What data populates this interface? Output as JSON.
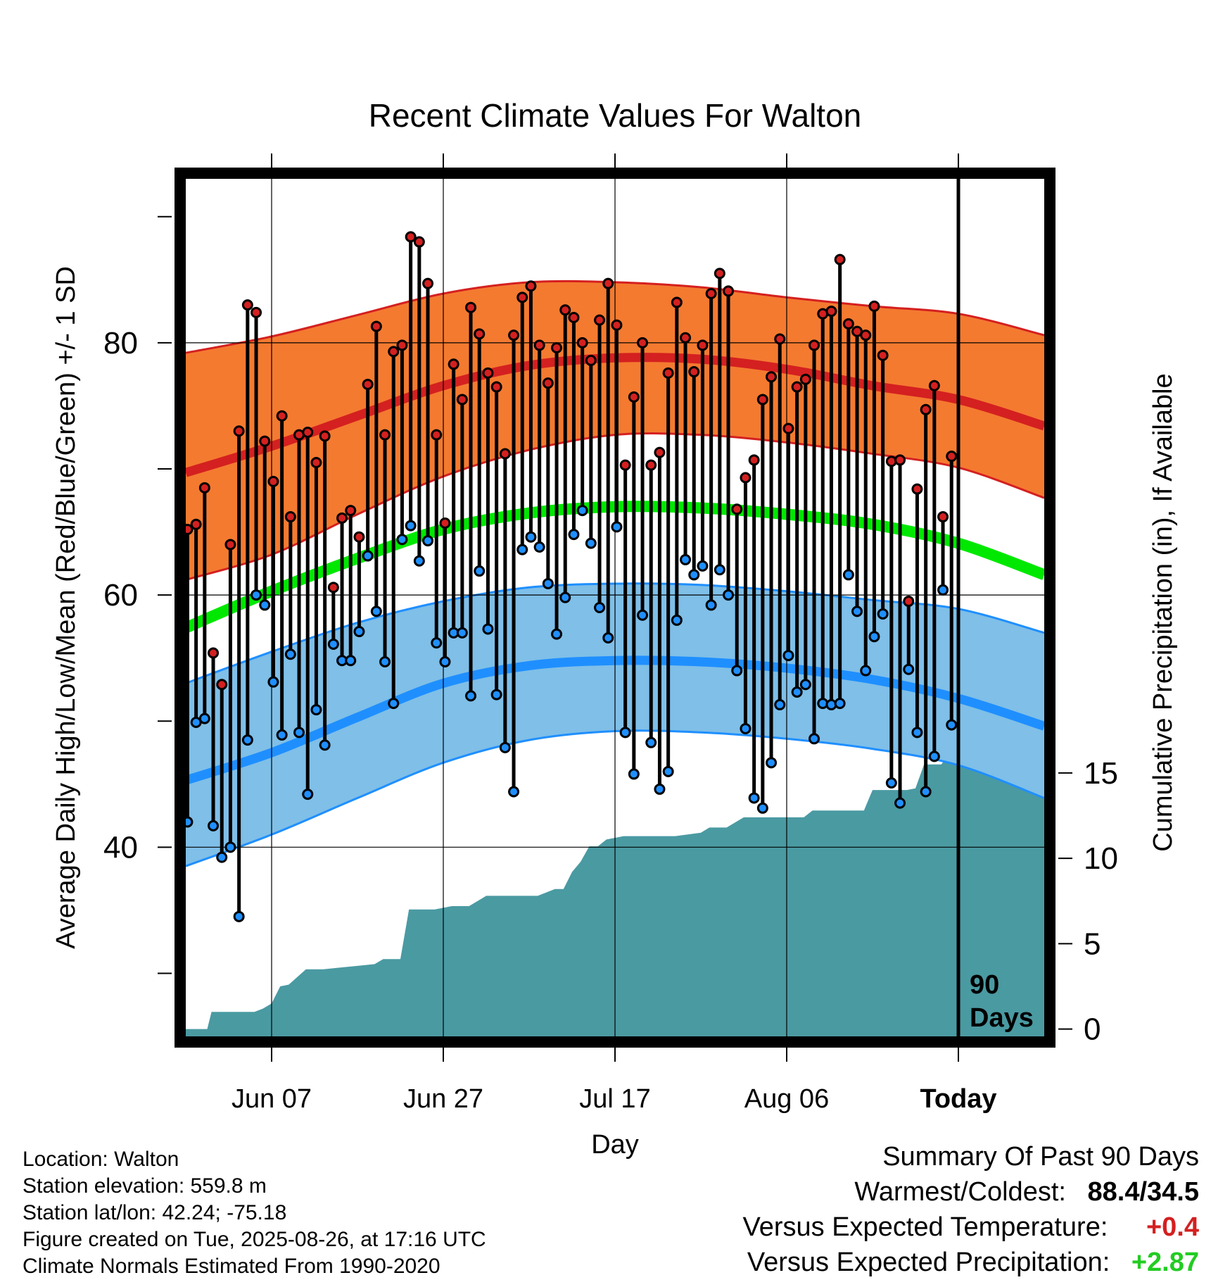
{
  "chart_data": {
    "type": "line",
    "title": "Recent Climate Values For Walton",
    "xlabel": "Day",
    "ylabel_left": "Average Daily High/Low/Mean (Red/Blue/Green) +/- 1 SD",
    "ylabel_right": "Cumulative Precipitation (in), If Available",
    "x_tick_labels": [
      "Jun 07",
      "Jun 27",
      "Jul 17",
      "Aug 06",
      "Today"
    ],
    "x_tick_days": [
      10,
      30,
      50,
      70,
      90
    ],
    "x_range": [
      0,
      100
    ],
    "y_left_tick_labels": [
      "40",
      "60",
      "80"
    ],
    "y_left_ticks": [
      40,
      60,
      80
    ],
    "y_left_range": [
      25,
      93
    ],
    "y_right_tick_labels": [
      "0",
      "5",
      "10",
      "15"
    ],
    "y_right_ticks": [
      0,
      5,
      10,
      15
    ],
    "y_right_range": [
      -0.43,
      49.8
    ],
    "today_label_line1": "90",
    "today_label_line2": "Days",
    "normals": {
      "high_mean": [
        [
          0,
          69.7
        ],
        [
          10,
          71.8
        ],
        [
          20,
          74.2
        ],
        [
          30,
          76.6
        ],
        [
          40,
          78.2
        ],
        [
          50,
          78.8
        ],
        [
          60,
          78.7
        ],
        [
          70,
          77.9
        ],
        [
          80,
          76.6
        ],
        [
          90,
          75.5
        ],
        [
          100,
          73.4
        ]
      ],
      "high_upper": [
        [
          0,
          79.2
        ],
        [
          10,
          80.5
        ],
        [
          20,
          82.2
        ],
        [
          30,
          83.9
        ],
        [
          40,
          84.8
        ],
        [
          50,
          84.8
        ],
        [
          60,
          84.4
        ],
        [
          70,
          83.6
        ],
        [
          80,
          82.9
        ],
        [
          90,
          82.3
        ],
        [
          100,
          80.6
        ]
      ],
      "high_lower": [
        [
          0,
          61.2
        ],
        [
          10,
          63.2
        ],
        [
          20,
          66.4
        ],
        [
          30,
          69.4
        ],
        [
          40,
          71.5
        ],
        [
          50,
          72.7
        ],
        [
          60,
          72.7
        ],
        [
          70,
          72.1
        ],
        [
          80,
          71.2
        ],
        [
          90,
          70.1
        ],
        [
          100,
          67.7
        ]
      ],
      "mean": [
        [
          0,
          57.4
        ],
        [
          10,
          60.3
        ],
        [
          20,
          62.9
        ],
        [
          30,
          65.2
        ],
        [
          40,
          66.5
        ],
        [
          50,
          67.0
        ],
        [
          60,
          66.9
        ],
        [
          70,
          66.4
        ],
        [
          80,
          65.6
        ],
        [
          90,
          64.1
        ],
        [
          100,
          61.6
        ]
      ],
      "low_mean": [
        [
          0,
          45.3
        ],
        [
          10,
          47.5
        ],
        [
          20,
          50.3
        ],
        [
          30,
          53.0
        ],
        [
          40,
          54.4
        ],
        [
          50,
          54.8
        ],
        [
          60,
          54.7
        ],
        [
          70,
          54.2
        ],
        [
          80,
          53.3
        ],
        [
          90,
          51.8
        ],
        [
          100,
          49.6
        ]
      ],
      "low_upper": [
        [
          0,
          53.0
        ],
        [
          10,
          55.5
        ],
        [
          20,
          57.8
        ],
        [
          30,
          59.5
        ],
        [
          40,
          60.6
        ],
        [
          50,
          60.9
        ],
        [
          60,
          60.8
        ],
        [
          70,
          60.3
        ],
        [
          80,
          59.6
        ],
        [
          90,
          58.9
        ],
        [
          100,
          57.0
        ]
      ],
      "low_lower": [
        [
          0,
          38.5
        ],
        [
          10,
          41.0
        ],
        [
          20,
          43.9
        ],
        [
          30,
          46.7
        ],
        [
          40,
          48.5
        ],
        [
          50,
          49.2
        ],
        [
          60,
          49.1
        ],
        [
          70,
          48.6
        ],
        [
          80,
          47.8
        ],
        [
          90,
          46.5
        ],
        [
          100,
          43.9
        ]
      ],
      "colors": {
        "high_band": "#f47a30",
        "high_line": "#d42020",
        "mean_line": "#00e800",
        "low_band": "#7fbfe8",
        "low_line": "#1f8fff",
        "precip_fill": "#4a9aa2"
      }
    },
    "daily": [
      {
        "hi": 65.2,
        "lo": 42.0
      },
      {
        "hi": 65.6,
        "lo": 49.9
      },
      {
        "hi": 68.5,
        "lo": 50.2
      },
      {
        "hi": 55.4,
        "lo": 41.7
      },
      {
        "hi": 52.9,
        "lo": 39.2
      },
      {
        "hi": 64.0,
        "lo": 40.0
      },
      {
        "hi": 73.0,
        "lo": 34.5
      },
      {
        "hi": 83.0,
        "lo": 48.5
      },
      {
        "hi": 82.4,
        "lo": 60.0
      },
      {
        "hi": 72.2,
        "lo": 59.2
      },
      {
        "hi": 69.0,
        "lo": 53.1
      },
      {
        "hi": 74.2,
        "lo": 48.9
      },
      {
        "hi": 66.2,
        "lo": 55.3
      },
      {
        "hi": 72.7,
        "lo": 49.1
      },
      {
        "hi": 72.9,
        "lo": 44.2
      },
      {
        "hi": 70.5,
        "lo": 50.9
      },
      {
        "hi": 72.6,
        "lo": 48.1
      },
      {
        "hi": 60.6,
        "lo": 56.1
      },
      {
        "hi": 66.1,
        "lo": 54.8
      },
      {
        "hi": 66.7,
        "lo": 54.8
      },
      {
        "hi": 64.6,
        "lo": 57.1
      },
      {
        "hi": 76.7,
        "lo": 63.1
      },
      {
        "hi": 81.3,
        "lo": 58.7
      },
      {
        "hi": 72.7,
        "lo": 54.7
      },
      {
        "hi": 79.3,
        "lo": 51.4
      },
      {
        "hi": 79.8,
        "lo": 64.4
      },
      {
        "hi": 88.4,
        "lo": 65.5
      },
      {
        "hi": 88.0,
        "lo": 62.7
      },
      {
        "hi": 84.7,
        "lo": 64.3
      },
      {
        "hi": 72.7,
        "lo": 56.2
      },
      {
        "hi": 65.7,
        "lo": 54.7
      },
      {
        "hi": 78.3,
        "lo": 57.0
      },
      {
        "hi": 75.5,
        "lo": 57.0
      },
      {
        "hi": 82.8,
        "lo": 52.0
      },
      {
        "hi": 80.7,
        "lo": 61.9
      },
      {
        "hi": 77.6,
        "lo": 57.3
      },
      {
        "hi": 76.5,
        "lo": 52.1
      },
      {
        "hi": 71.2,
        "lo": 47.9
      },
      {
        "hi": 80.6,
        "lo": 44.4
      },
      {
        "hi": 83.6,
        "lo": 63.6
      },
      {
        "hi": 84.5,
        "lo": 64.6
      },
      {
        "hi": 79.8,
        "lo": 63.8
      },
      {
        "hi": 76.8,
        "lo": 60.9
      },
      {
        "hi": 79.6,
        "lo": 56.9
      },
      {
        "hi": 82.6,
        "lo": 59.8
      },
      {
        "hi": 82.0,
        "lo": 64.8
      },
      {
        "hi": 80.0,
        "lo": 66.7
      },
      {
        "hi": 78.6,
        "lo": 64.1
      },
      {
        "hi": 81.8,
        "lo": 59.0
      },
      {
        "hi": 84.7,
        "lo": 56.6
      },
      {
        "hi": 81.4,
        "lo": 65.4
      },
      {
        "hi": 70.3,
        "lo": 49.1
      },
      {
        "hi": 75.7,
        "lo": 45.8
      },
      {
        "hi": 80.0,
        "lo": 58.4
      },
      {
        "hi": 70.3,
        "lo": 48.3
      },
      {
        "hi": 71.3,
        "lo": 44.6
      },
      {
        "hi": 77.6,
        "lo": 46.0
      },
      {
        "hi": 83.2,
        "lo": 58.0
      },
      {
        "hi": 80.4,
        "lo": 62.8
      },
      {
        "hi": 77.7,
        "lo": 61.6
      },
      {
        "hi": 79.8,
        "lo": 62.3
      },
      {
        "hi": 83.9,
        "lo": 59.2
      },
      {
        "hi": 85.5,
        "lo": 62.0
      },
      {
        "hi": 84.1,
        "lo": 60.0
      },
      {
        "hi": 66.8,
        "lo": 54.0
      },
      {
        "hi": 69.3,
        "lo": 49.4
      },
      {
        "hi": 70.7,
        "lo": 43.9
      },
      {
        "hi": 75.5,
        "lo": 43.1
      },
      {
        "hi": 77.3,
        "lo": 46.7
      },
      {
        "hi": 80.3,
        "lo": 51.3
      },
      {
        "hi": 73.2,
        "lo": 55.2
      },
      {
        "hi": 76.5,
        "lo": 52.3
      },
      {
        "hi": 77.1,
        "lo": 52.9
      },
      {
        "hi": 79.8,
        "lo": 48.6
      },
      {
        "hi": 82.3,
        "lo": 51.4
      },
      {
        "hi": 82.5,
        "lo": 51.3
      },
      {
        "hi": 86.6,
        "lo": 51.4
      },
      {
        "hi": 81.5,
        "lo": 61.6
      },
      {
        "hi": 80.9,
        "lo": 58.7
      },
      {
        "hi": 80.6,
        "lo": 54.0
      },
      {
        "hi": 82.9,
        "lo": 56.7
      },
      {
        "hi": 79.0,
        "lo": 58.5
      },
      {
        "hi": 70.6,
        "lo": 45.1
      },
      {
        "hi": 70.7,
        "lo": 43.5
      },
      {
        "hi": 59.5,
        "lo": 54.1
      },
      {
        "hi": 68.4,
        "lo": 49.1
      },
      {
        "hi": 74.7,
        "lo": 44.4
      },
      {
        "hi": 76.6,
        "lo": 47.2
      },
      {
        "hi": 66.2,
        "lo": 60.4
      },
      {
        "hi": 71.0,
        "lo": 49.7
      }
    ],
    "precip_cumulative": [
      [
        0,
        0
      ],
      [
        2.5,
        0
      ],
      [
        3,
        1.0
      ],
      [
        8,
        1.0
      ],
      [
        9,
        1.2
      ],
      [
        10,
        1.5
      ],
      [
        11,
        2.5
      ],
      [
        12,
        2.6
      ],
      [
        14,
        3.5
      ],
      [
        16,
        3.5
      ],
      [
        18,
        3.6
      ],
      [
        20,
        3.7
      ],
      [
        22,
        3.8
      ],
      [
        23,
        4.1
      ],
      [
        25,
        4.1
      ],
      [
        26,
        7.0
      ],
      [
        29,
        7.0
      ],
      [
        30,
        7.1
      ],
      [
        31,
        7.2
      ],
      [
        33,
        7.2
      ],
      [
        34,
        7.5
      ],
      [
        35,
        7.8
      ],
      [
        41,
        7.8
      ],
      [
        43,
        8.2
      ],
      [
        44,
        8.2
      ],
      [
        45,
        9.2
      ],
      [
        46,
        9.8
      ],
      [
        47,
        10.7
      ],
      [
        48,
        10.7
      ],
      [
        49,
        11.1
      ],
      [
        51,
        11.3
      ],
      [
        57,
        11.3
      ],
      [
        60,
        11.5
      ],
      [
        61,
        11.8
      ],
      [
        63,
        11.8
      ],
      [
        65,
        12.4
      ],
      [
        72,
        12.4
      ],
      [
        73,
        12.8
      ],
      [
        79,
        12.8
      ],
      [
        80,
        14.0
      ],
      [
        84,
        14.0
      ],
      [
        85,
        14.1
      ],
      [
        86,
        15.5
      ],
      [
        88,
        15.5
      ],
      [
        89,
        16.1
      ],
      [
        90,
        16.4
      ],
      [
        100,
        16.4
      ]
    ]
  },
  "info": {
    "location": "Location: Walton",
    "elevation": "Station elevation: 559.8 m",
    "latlon": "Station lat/lon: 42.24; -75.18",
    "created": "Figure created on Tue, 2025-08-26, at 17:16 UTC",
    "normals_note": "Climate Normals Estimated From 1990-2020"
  },
  "summary": {
    "heading": "Summary Of Past 90 Days",
    "warmest_label": "Warmest/Coldest:",
    "warmest_value": "88.4/34.5",
    "temp_label": "Versus Expected Temperature:",
    "temp_value": "+0.4",
    "temp_color": "#d42020",
    "precip_label": "Versus Expected Precipitation:",
    "precip_value": "+2.87",
    "precip_color": "#22cc22"
  }
}
